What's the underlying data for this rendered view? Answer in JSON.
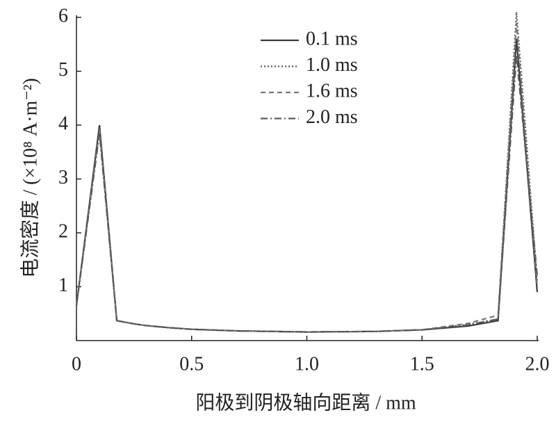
{
  "chart_data": {
    "type": "line",
    "x_label": "阳极到阴极轴向距离 / mm",
    "y_label": "电流密度 / (×10⁸ A·m⁻²)",
    "x": [
      0,
      0.1,
      0.175,
      0.2,
      0.25,
      0.3,
      0.4,
      0.5,
      0.7,
      1.0,
      1.3,
      1.5,
      1.7,
      1.83,
      1.91,
      2.0
    ],
    "series": [
      {
        "name": "0.1 ms",
        "color": "#3a3a3a",
        "style": "solid",
        "values": [
          0.65,
          4.0,
          0.37,
          0.35,
          0.31,
          0.28,
          0.24,
          0.21,
          0.18,
          0.16,
          0.17,
          0.2,
          0.27,
          0.37,
          5.6,
          0.9
        ]
      },
      {
        "name": "1.0 ms",
        "color": "#555555",
        "style": "dotted",
        "values": [
          0.65,
          3.95,
          0.37,
          0.35,
          0.31,
          0.28,
          0.24,
          0.21,
          0.18,
          0.16,
          0.17,
          0.2,
          0.3,
          0.4,
          6.1,
          1.1
        ]
      },
      {
        "name": "1.6 ms",
        "color": "#777777",
        "style": "dashed",
        "values": [
          0.65,
          3.9,
          0.37,
          0.35,
          0.31,
          0.28,
          0.24,
          0.21,
          0.18,
          0.16,
          0.17,
          0.2,
          0.32,
          0.47,
          5.9,
          1.0
        ]
      },
      {
        "name": "2.0 ms",
        "color": "#5a5a5a",
        "style": "dashdot",
        "values": [
          0.65,
          3.85,
          0.37,
          0.35,
          0.31,
          0.28,
          0.24,
          0.21,
          0.18,
          0.16,
          0.17,
          0.2,
          0.29,
          0.4,
          5.3,
          1.2
        ]
      }
    ],
    "xlim": [
      0,
      2.0
    ],
    "ylim": [
      0,
      6
    ],
    "xticks": [
      0,
      0.5,
      {
        "value": 1.0,
        "label": "1.0"
      },
      1.5,
      {
        "value": 2.0,
        "label": "2.0"
      }
    ],
    "yticks": [
      1,
      2,
      3,
      4,
      5,
      6
    ],
    "grid": false,
    "legend": "upper center"
  }
}
